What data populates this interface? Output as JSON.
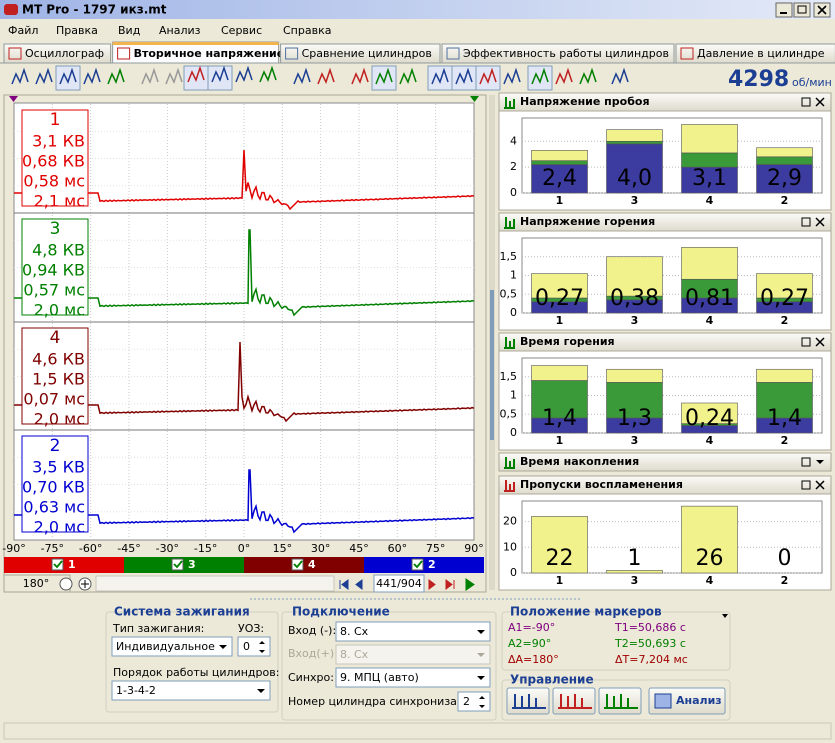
{
  "window": {
    "title": "MT Pro - 1797 икз.mt"
  },
  "menu": [
    "Файл",
    "Правка",
    "Вид",
    "Анализ",
    "Сервис",
    "Справка"
  ],
  "tabs": [
    "Осциллограф",
    "Вторичное напряжение",
    "Сравнение цилиндров",
    "Эффективность работы цилиндров",
    "Давление в цилиндре"
  ],
  "active_tab": 1,
  "rpm": {
    "value": "4298",
    "unit": "об/мин"
  },
  "oscillogram": {
    "traces": [
      {
        "cylinder": "1",
        "color": "#e00000",
        "readings": [
          "3,1 КВ",
          "0,68 КВ",
          "0,58 мс",
          "2,1 мс"
        ]
      },
      {
        "cylinder": "3",
        "color": "#008000",
        "readings": [
          "4,8 КВ",
          "0,94 КВ",
          "0,57 мс",
          "2,0 мс"
        ]
      },
      {
        "cylinder": "4",
        "color": "#800000",
        "readings": [
          "4,6 КВ",
          "1,5 КВ",
          "0,07 мс",
          "2,0 мс"
        ]
      },
      {
        "cylinder": "2",
        "color": "#0000d0",
        "readings": [
          "3,5 КВ",
          "0,70 КВ",
          "0,63 мс",
          "2,0 мс"
        ]
      }
    ],
    "angle_labels": [
      "-90°",
      "-75°",
      "-60°",
      "-45°",
      "-30°",
      "-15°",
      "0°",
      "15°",
      "30°",
      "45°",
      "60°",
      "75°",
      "90°"
    ],
    "channels": [
      "1",
      "3",
      "4",
      "2"
    ],
    "zoom": "180°",
    "position": "441/904"
  },
  "segment_colors": [
    "#3c3ca0",
    "#3a9a3a",
    "#f2f28c"
  ],
  "panels": [
    {
      "title": "Напряжение пробоя",
      "categories": [
        "1",
        "3",
        "4",
        "2"
      ],
      "ylim": [
        0,
        5.8
      ],
      "yticks": [
        0,
        2,
        4
      ],
      "segments": [
        [
          2.2,
          0.3,
          0.8
        ],
        [
          3.8,
          0.2,
          0.9
        ],
        [
          2.0,
          1.1,
          2.2
        ],
        [
          2.2,
          0.6,
          0.7
        ]
      ],
      "value_labels": [
        "2,4",
        "4,0",
        "3,1",
        "2,9"
      ]
    },
    {
      "title": "Напряжение горения",
      "categories": [
        "1",
        "3",
        "4",
        "2"
      ],
      "ylim": [
        0,
        2.0
      ],
      "yticks": [
        0,
        {
          "value": 0.5,
          "label": "0,5"
        },
        1,
        {
          "value": 1.5,
          "label": "1,5"
        }
      ],
      "segments": [
        [
          0.3,
          0.1,
          0.65
        ],
        [
          0.35,
          0.1,
          1.05
        ],
        [
          0.4,
          0.5,
          0.85
        ],
        [
          0.3,
          0.1,
          0.65
        ]
      ],
      "value_labels": [
        "0,27",
        "0,38",
        "0,81",
        "0,27"
      ]
    },
    {
      "title": "Время горения",
      "categories": [
        "1",
        "3",
        "4",
        "2"
      ],
      "ylim": [
        0,
        2.0
      ],
      "yticks": [
        0,
        {
          "value": 0.5,
          "label": "0,5"
        },
        1,
        {
          "value": 1.5,
          "label": "1,5"
        }
      ],
      "segments": [
        [
          0.4,
          1.0,
          0.4
        ],
        [
          0.4,
          0.95,
          0.35
        ],
        [
          0.2,
          0.05,
          0.55
        ],
        [
          0.4,
          0.95,
          0.35
        ]
      ],
      "value_labels": [
        "1,4",
        "1,3",
        "0,24",
        "1,4"
      ]
    },
    {
      "title": "Время накопления",
      "collapsed": true
    },
    {
      "title": "Пропуски воспламенения",
      "categories": [
        "1",
        "3",
        "4",
        "2"
      ],
      "ylim": [
        0,
        28
      ],
      "yticks": [
        0,
        10,
        20
      ],
      "segments": [
        [
          0,
          0,
          22
        ],
        [
          0,
          0,
          1
        ],
        [
          0,
          0,
          26
        ],
        [
          0,
          0,
          0
        ]
      ],
      "value_labels": [
        "22",
        "1",
        "26",
        "0"
      ]
    }
  ],
  "ignition": {
    "title": "Система зажигания",
    "type_label": "Тип зажигания:",
    "type": "Индивидуальное",
    "advance_label": "УОЗ:",
    "advance": "0",
    "order_label": "Порядок работы цилиндров:",
    "order": "1-3-4-2"
  },
  "connection": {
    "title": "Подключение",
    "input_neg_label": "Вход (-):",
    "input_neg": "8. Cx",
    "input_pos_label": "Вход(+):",
    "input_pos": "8. Cx",
    "sync_label": "Синхро:",
    "sync": "9. МПЦ (авто)",
    "sync_cyl_label": "Номер цилиндра синхронизации:",
    "sync_cyl": "2"
  },
  "markers": {
    "title": "Положение маркеров",
    "a1": "A1=-90°",
    "t1": "T1=50,686 с",
    "a2": "A2=90°",
    "t2": "T2=50,693 с",
    "da": "ΔA=180°",
    "dt": "ΔT=7,204 мс"
  },
  "control": {
    "title": "Управление",
    "analyze": "Анализ"
  }
}
